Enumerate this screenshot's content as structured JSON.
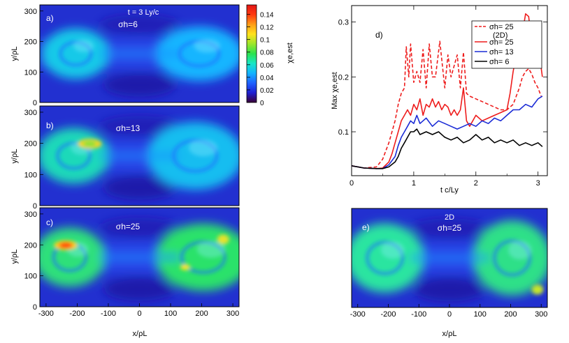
{
  "colorbar": {
    "label": "χe,est",
    "ticks": [
      "0.14",
      "0.12",
      "0.1",
      "0.08",
      "0.06",
      "0.04",
      "0.02",
      "0"
    ],
    "tick_values": [
      0.14,
      0.12,
      0.1,
      0.08,
      0.06,
      0.04,
      0.02,
      0
    ],
    "range": [
      0,
      0.155
    ],
    "colors": [
      "#3a0035",
      "#1e1fd2",
      "#1f62ff",
      "#12b3ff",
      "#18e6c6",
      "#2be24e",
      "#9be62a",
      "#ffe21b",
      "#ff9c16",
      "#ff3a10",
      "#e31515"
    ]
  },
  "maps": {
    "ylabel": "y/ρL",
    "xlabel": "x/ρL",
    "yticks": [
      "0",
      "100",
      "200",
      "300"
    ],
    "xticks": [
      "-300",
      "-200",
      "-100",
      "0",
      "100",
      "200",
      "300"
    ],
    "xrange": [
      -320,
      320
    ],
    "yrange": [
      0,
      320
    ],
    "panels": [
      {
        "id": "a",
        "label": "a)",
        "annot": "t = 3 Ly/c",
        "sigma": "σh=6",
        "level": "low"
      },
      {
        "id": "b",
        "label": "b)",
        "sigma": "σh=13",
        "level": "mid"
      },
      {
        "id": "c",
        "label": "c)",
        "sigma": "σh=25",
        "level": "high"
      },
      {
        "id": "e",
        "label": "e)",
        "annot": "2D",
        "sigma": "σh=25",
        "level": "2d"
      }
    ]
  },
  "chart_data": {
    "type": "line",
    "title": "d)",
    "xlabel": "t c/Ly",
    "ylabel": "Max χe,est",
    "xlim": [
      0,
      3.15
    ],
    "ylim": [
      0.02,
      0.33
    ],
    "xticks": [
      "0",
      "1",
      "2",
      "3"
    ],
    "yticks": [
      "0.1",
      "0.2",
      "0.3"
    ],
    "legend": "top-right",
    "series": [
      {
        "name": "σh= 25 (2D)",
        "color": "#ee1c1c",
        "dash": true,
        "x": [
          0,
          0.2,
          0.4,
          0.5,
          0.6,
          0.7,
          0.75,
          0.8,
          0.85,
          0.88,
          0.92,
          0.95,
          1.0,
          1.05,
          1.1,
          1.15,
          1.2,
          1.25,
          1.3,
          1.35,
          1.42,
          1.5,
          1.55,
          1.6,
          1.7,
          1.75,
          1.8,
          1.85,
          1.9,
          2.0,
          2.1,
          2.2,
          2.3,
          2.4,
          2.5,
          2.6,
          2.7,
          2.75,
          2.8,
          2.85,
          2.9,
          2.95,
          3.0,
          3.05
        ],
        "y": [
          0.038,
          0.034,
          0.036,
          0.05,
          0.08,
          0.12,
          0.15,
          0.17,
          0.18,
          0.255,
          0.2,
          0.26,
          0.19,
          0.21,
          0.19,
          0.25,
          0.18,
          0.26,
          0.2,
          0.2,
          0.265,
          0.18,
          0.24,
          0.2,
          0.24,
          0.18,
          0.245,
          0.17,
          0.165,
          0.16,
          0.155,
          0.15,
          0.145,
          0.14,
          0.14,
          0.15,
          0.18,
          0.2,
          0.21,
          0.215,
          0.205,
          0.19,
          0.18,
          0.165
        ]
      },
      {
        "name": "σh= 25",
        "color": "#ee1c1c",
        "dash": false,
        "x": [
          0,
          0.2,
          0.4,
          0.5,
          0.6,
          0.65,
          0.7,
          0.75,
          0.8,
          0.85,
          0.9,
          0.95,
          1.0,
          1.05,
          1.1,
          1.15,
          1.2,
          1.25,
          1.3,
          1.35,
          1.4,
          1.45,
          1.5,
          1.55,
          1.6,
          1.65,
          1.7,
          1.75,
          1.8,
          1.85,
          1.9,
          2.0,
          2.1,
          2.2,
          2.3,
          2.4,
          2.5,
          2.55,
          2.6,
          2.65,
          2.7,
          2.75,
          2.8,
          2.85,
          2.9,
          2.95,
          3.0,
          3.07
        ],
        "y": [
          0.038,
          0.034,
          0.033,
          0.034,
          0.045,
          0.06,
          0.08,
          0.1,
          0.12,
          0.13,
          0.14,
          0.13,
          0.15,
          0.14,
          0.16,
          0.13,
          0.15,
          0.145,
          0.16,
          0.145,
          0.155,
          0.14,
          0.15,
          0.145,
          0.13,
          0.14,
          0.13,
          0.14,
          0.18,
          0.12,
          0.11,
          0.13,
          0.12,
          0.125,
          0.13,
          0.135,
          0.14,
          0.17,
          0.21,
          0.24,
          0.27,
          0.28,
          0.315,
          0.31,
          0.26,
          0.25,
          0.26,
          0.2
        ]
      },
      {
        "name": "σh= 13",
        "color": "#1a2bd6",
        "dash": false,
        "x": [
          0,
          0.2,
          0.4,
          0.5,
          0.6,
          0.7,
          0.75,
          0.8,
          0.85,
          0.9,
          0.95,
          1.0,
          1.05,
          1.1,
          1.15,
          1.2,
          1.3,
          1.4,
          1.5,
          1.6,
          1.7,
          1.8,
          1.9,
          2.0,
          2.1,
          2.2,
          2.3,
          2.4,
          2.5,
          2.6,
          2.7,
          2.8,
          2.9,
          3.0,
          3.07
        ],
        "y": [
          0.038,
          0.034,
          0.033,
          0.033,
          0.04,
          0.055,
          0.075,
          0.09,
          0.1,
          0.11,
          0.12,
          0.115,
          0.13,
          0.115,
          0.12,
          0.125,
          0.11,
          0.12,
          0.115,
          0.11,
          0.105,
          0.11,
          0.115,
          0.11,
          0.12,
          0.115,
          0.125,
          0.12,
          0.13,
          0.14,
          0.14,
          0.15,
          0.145,
          0.16,
          0.165
        ]
      },
      {
        "name": "σh= 6",
        "color": "#000000",
        "dash": false,
        "x": [
          0,
          0.2,
          0.4,
          0.5,
          0.6,
          0.7,
          0.75,
          0.8,
          0.85,
          0.9,
          0.95,
          1.0,
          1.05,
          1.1,
          1.2,
          1.3,
          1.4,
          1.5,
          1.6,
          1.7,
          1.8,
          1.9,
          2.0,
          2.1,
          2.2,
          2.3,
          2.4,
          2.5,
          2.6,
          2.7,
          2.8,
          2.9,
          3.0,
          3.07
        ],
        "y": [
          0.038,
          0.034,
          0.033,
          0.033,
          0.036,
          0.045,
          0.055,
          0.07,
          0.08,
          0.09,
          0.1,
          0.1,
          0.105,
          0.095,
          0.1,
          0.095,
          0.1,
          0.09,
          0.085,
          0.09,
          0.08,
          0.085,
          0.095,
          0.085,
          0.09,
          0.08,
          0.085,
          0.08,
          0.085,
          0.075,
          0.08,
          0.075,
          0.08,
          0.073
        ]
      }
    ]
  }
}
